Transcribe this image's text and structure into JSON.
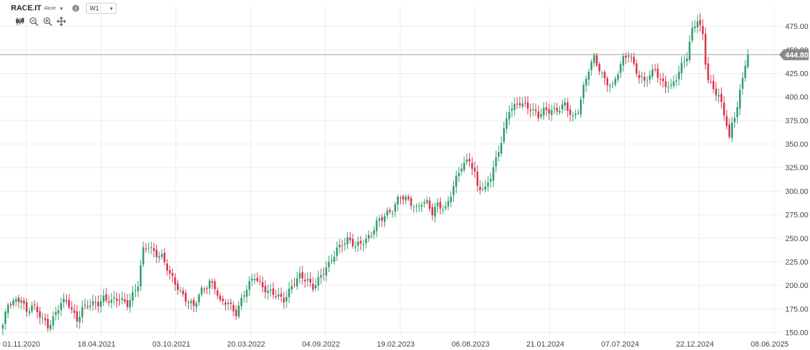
{
  "header": {
    "symbol": "RACE.IT",
    "type": "Akcie",
    "timeframe": "W1"
  },
  "icons": [
    "chart-type-icon",
    "zoom-out-icon",
    "zoom-in-icon",
    "move-icon",
    "info-icon",
    "dropdown-caret-icon"
  ],
  "colors": {
    "up": "#2e9e6b",
    "down": "#d8334a",
    "grid": "#ececec",
    "price_line": "#9e9e9e",
    "price_tag": "#8a8a8a"
  },
  "chart_data": {
    "type": "candlestick",
    "timeframe": "W1",
    "x_ticks": [
      "01.11.2020",
      "18.04.2021",
      "03.10.2021",
      "20.03.2022",
      "04.09.2022",
      "19.02.2023",
      "06.08.2023",
      "21.01.2024",
      "07.07.2024",
      "22.12.2024",
      "08.06.2025"
    ],
    "y_ticks": [
      150,
      175,
      200,
      225,
      250,
      275,
      300,
      325,
      350,
      375,
      400,
      425,
      450,
      475
    ],
    "y_range": [
      146,
      497
    ],
    "current_price": 444.8,
    "current_price_label": "444.80",
    "grid": true,
    "anchors": [
      [
        0,
        158
      ],
      [
        2,
        178
      ],
      [
        5,
        183
      ],
      [
        7,
        188
      ],
      [
        9,
        172
      ],
      [
        11,
        178
      ],
      [
        13,
        170
      ],
      [
        15,
        165
      ],
      [
        17,
        158
      ],
      [
        20,
        170
      ],
      [
        22,
        180
      ],
      [
        24,
        182
      ],
      [
        25,
        180
      ],
      [
        27,
        170
      ],
      [
        28,
        165
      ],
      [
        30,
        175
      ],
      [
        33,
        178
      ],
      [
        36,
        182
      ],
      [
        38,
        188
      ],
      [
        41,
        182
      ],
      [
        44,
        185
      ],
      [
        47,
        182
      ],
      [
        51,
        200
      ],
      [
        53,
        236
      ],
      [
        55,
        242
      ],
      [
        57,
        237
      ],
      [
        60,
        230
      ],
      [
        63,
        210
      ],
      [
        67,
        195
      ],
      [
        70,
        182
      ],
      [
        72,
        176
      ],
      [
        75,
        195
      ],
      [
        78,
        205
      ],
      [
        80,
        198
      ],
      [
        82,
        180
      ],
      [
        85,
        182
      ],
      [
        88,
        172
      ],
      [
        91,
        190
      ],
      [
        94,
        205
      ],
      [
        95,
        210
      ],
      [
        98,
        200
      ],
      [
        100,
        193
      ],
      [
        103,
        188
      ],
      [
        106,
        186
      ],
      [
        109,
        200
      ],
      [
        112,
        208
      ],
      [
        115,
        205
      ],
      [
        117,
        200
      ],
      [
        120,
        210
      ],
      [
        123,
        220
      ],
      [
        126,
        240
      ],
      [
        128,
        246
      ],
      [
        130,
        248
      ],
      [
        133,
        240
      ],
      [
        136,
        248
      ],
      [
        139,
        255
      ],
      [
        141,
        265
      ],
      [
        143,
        270
      ],
      [
        145,
        277
      ],
      [
        147,
        282
      ],
      [
        149,
        292
      ],
      [
        150,
        294
      ],
      [
        153,
        288
      ],
      [
        156,
        283
      ],
      [
        158,
        290
      ],
      [
        160,
        287
      ],
      [
        162,
        275
      ],
      [
        164,
        285
      ],
      [
        167,
        283
      ],
      [
        170,
        305
      ],
      [
        173,
        325
      ],
      [
        176,
        335
      ],
      [
        178,
        320
      ],
      [
        179,
        305
      ],
      [
        182,
        300
      ],
      [
        184,
        315
      ],
      [
        186,
        335
      ],
      [
        188,
        355
      ],
      [
        190,
        375
      ],
      [
        191,
        385
      ],
      [
        193,
        388
      ],
      [
        195,
        395
      ],
      [
        197,
        393
      ],
      [
        199,
        388
      ],
      [
        202,
        378
      ],
      [
        204,
        385
      ],
      [
        207,
        388
      ],
      [
        209,
        386
      ],
      [
        212,
        390
      ],
      [
        214,
        382
      ],
      [
        215,
        378
      ],
      [
        217,
        388
      ],
      [
        219,
        410
      ],
      [
        221,
        428
      ],
      [
        223,
        440
      ],
      [
        225,
        430
      ],
      [
        227,
        420
      ],
      [
        230,
        410
      ],
      [
        232,
        425
      ],
      [
        234,
        440
      ],
      [
        236,
        448
      ],
      [
        238,
        435
      ],
      [
        240,
        420
      ],
      [
        242,
        415
      ],
      [
        244,
        422
      ],
      [
        246,
        432
      ],
      [
        248,
        418
      ],
      [
        250,
        412
      ],
      [
        252,
        408
      ],
      [
        254,
        420
      ],
      [
        256,
        435
      ],
      [
        258,
        445
      ],
      [
        260,
        470
      ],
      [
        262,
        480
      ],
      [
        264,
        465
      ],
      [
        265,
        438
      ],
      [
        266,
        420
      ],
      [
        268,
        410
      ],
      [
        270,
        400
      ],
      [
        272,
        380
      ],
      [
        273,
        370
      ],
      [
        274,
        355
      ],
      [
        275,
        372
      ],
      [
        277,
        392
      ],
      [
        279,
        420
      ],
      [
        280,
        435
      ],
      [
        281,
        444.8
      ]
    ]
  }
}
